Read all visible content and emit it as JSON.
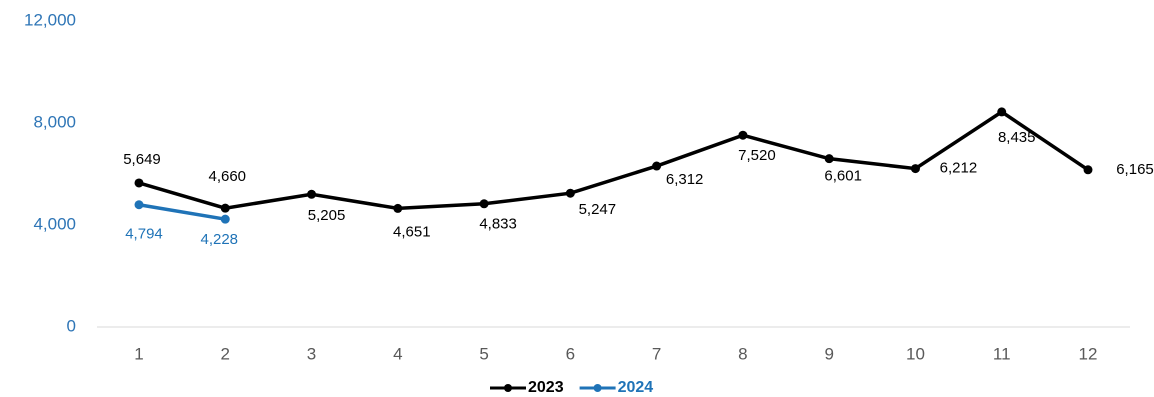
{
  "chart_data": {
    "type": "line",
    "categories": [
      "1",
      "2",
      "3",
      "4",
      "5",
      "6",
      "7",
      "8",
      "9",
      "10",
      "11",
      "12"
    ],
    "series": [
      {
        "name": "2023",
        "color": "#000000",
        "values": [
          5649,
          4660,
          5205,
          4651,
          4833,
          5247,
          6312,
          7520,
          6601,
          6212,
          8435,
          6165
        ],
        "value_labels": [
          "5,649",
          "4,660",
          "5,205",
          "4,651",
          "4,833",
          "5,247",
          "6,312",
          "7,520",
          "6,601",
          "6,212",
          "8,435",
          "6,165"
        ]
      },
      {
        "name": "2024",
        "color": "#1f73b7",
        "values": [
          4794,
          4228,
          null,
          null,
          null,
          null,
          null,
          null,
          null,
          null,
          null,
          null
        ],
        "value_labels": [
          "4,794",
          "4,228",
          null,
          null,
          null,
          null,
          null,
          null,
          null,
          null,
          null,
          null
        ]
      }
    ],
    "ylim": [
      0,
      12000
    ],
    "yticks": [
      0,
      {
        "value": 4000,
        "label": "4,000"
      },
      {
        "value": 8000,
        "label": "8,000"
      },
      {
        "value": 12000,
        "label": "12,000"
      }
    ],
    "legend": "bottom"
  }
}
